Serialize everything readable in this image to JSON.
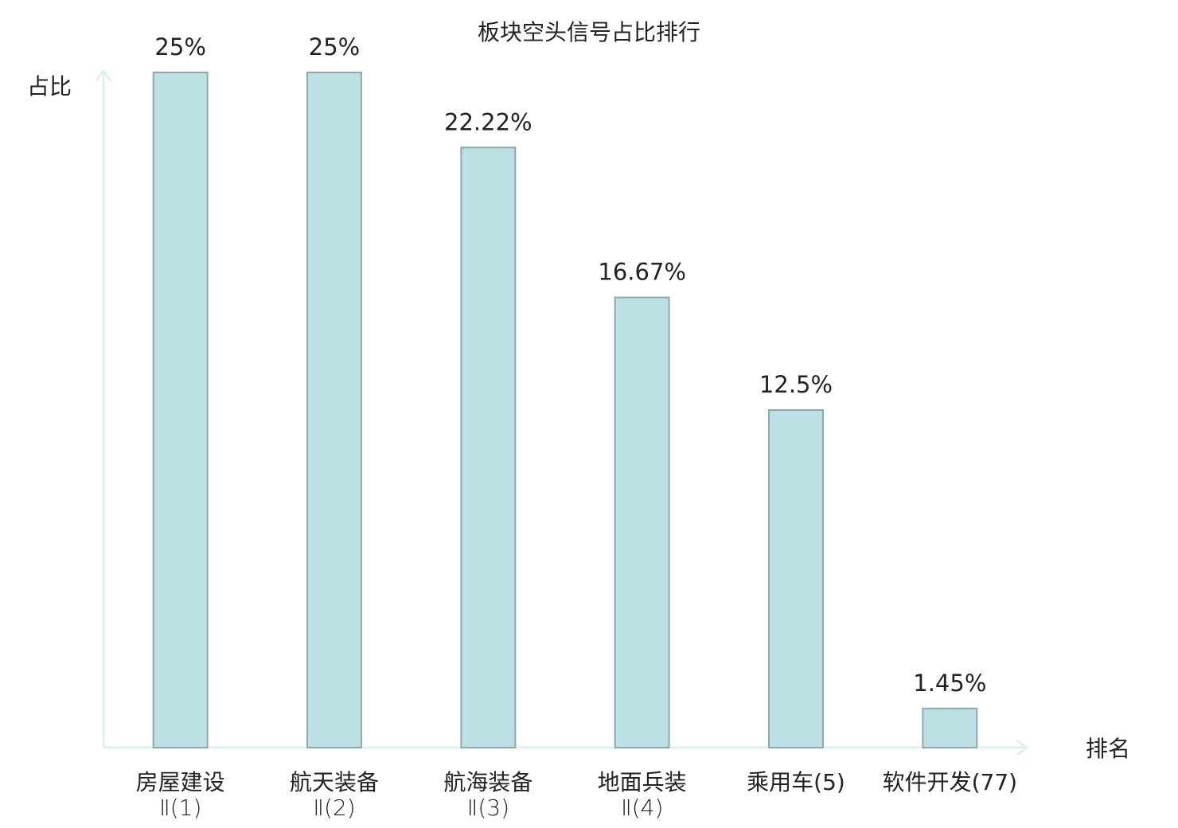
{
  "chart_data": {
    "type": "bar",
    "title": "板块空头信号占比排行",
    "y_label": "占比",
    "x_label": "排名",
    "categories": [
      [
        "房屋建设",
        "Ⅱ(1)"
      ],
      [
        "航天装备",
        "Ⅱ(2)"
      ],
      [
        "航海装备",
        "Ⅱ(3)"
      ],
      [
        "地面兵装",
        "Ⅱ(4)"
      ],
      [
        "乘用车(5)"
      ],
      [
        "软件开发(77)"
      ]
    ],
    "category_colors": [
      "#222222",
      "#222222",
      "#222222",
      "#222222",
      "#222222",
      "#e8000b"
    ],
    "values": [
      25,
      25,
      22.22,
      16.67,
      12.5,
      1.45
    ],
    "value_labels": [
      "25%",
      "25%",
      "22.22%",
      "16.67%",
      "12.5%",
      "1.45%"
    ],
    "color": "#bce0e3",
    "edge_color": "#8fa9aa",
    "axis_color": "#dff1ee",
    "ylim": [
      0,
      25
    ]
  }
}
